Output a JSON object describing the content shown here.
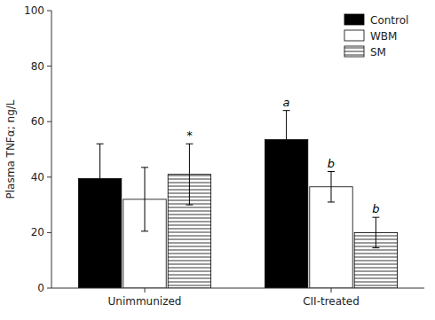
{
  "chart_data": {
    "type": "bar",
    "ylabel": "Plasma TNFα; ng/L",
    "categories": [
      "Unimmunized",
      "CII-treated"
    ],
    "series": [
      {
        "name": "Control",
        "color": "black",
        "values": [
          39.5,
          53.5
        ],
        "errors": [
          12.5,
          10.5
        ],
        "annotations": [
          null,
          "a"
        ]
      },
      {
        "name": "WBM",
        "color": "white",
        "values": [
          32.0,
          36.5
        ],
        "errors": [
          11.5,
          5.5
        ],
        "annotations": [
          null,
          "b"
        ]
      },
      {
        "name": "SM",
        "color": "white",
        "values": [
          41.0,
          20.0
        ],
        "errors": [
          11.0,
          5.5
        ],
        "annotations": [
          "*",
          "b"
        ]
      }
    ],
    "ylim": [
      0,
      100
    ],
    "yticks": [
      0,
      20,
      40,
      60,
      80,
      100
    ],
    "grid": false,
    "legend": "upper right"
  }
}
